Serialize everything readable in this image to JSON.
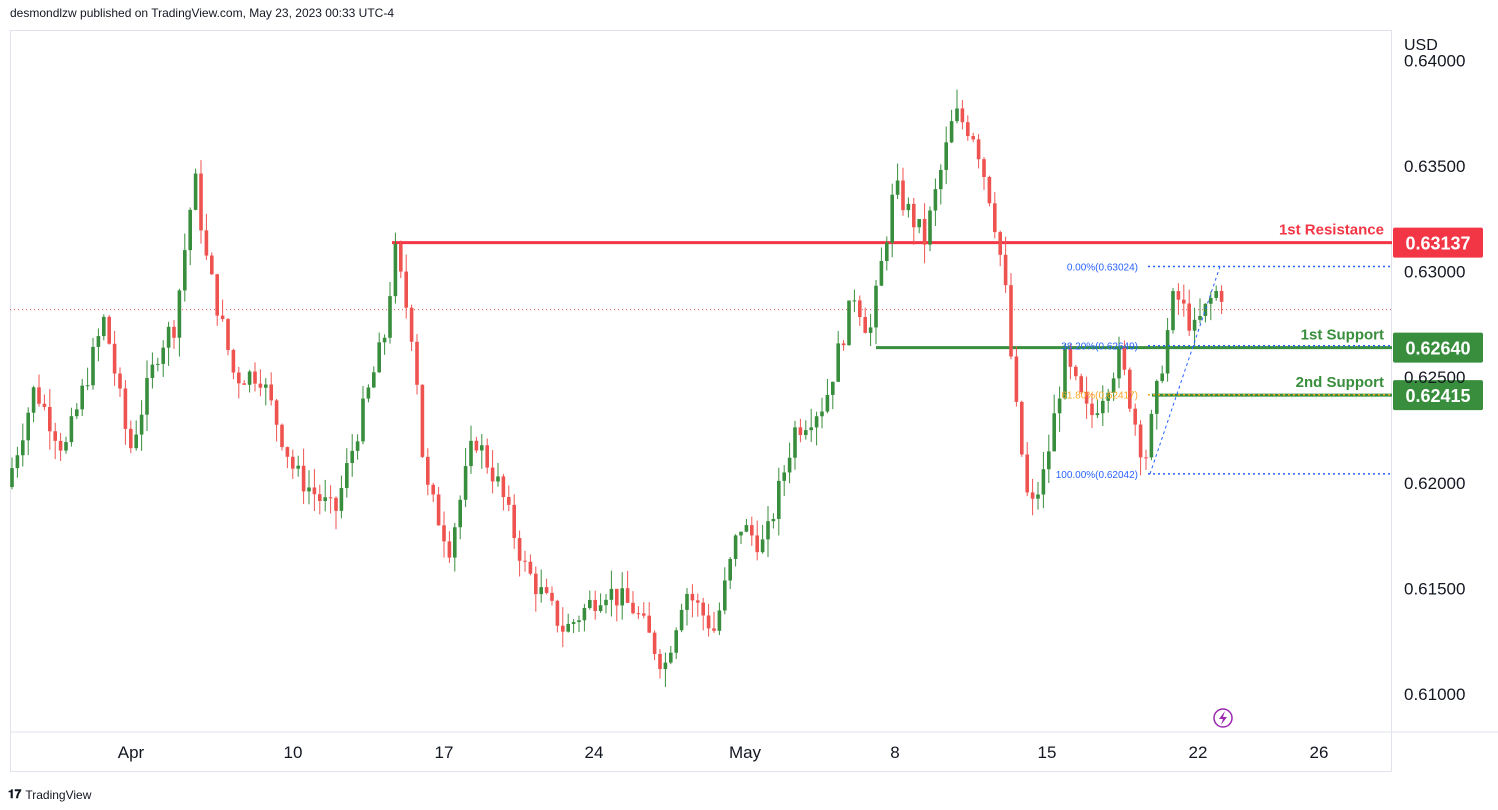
{
  "header": {
    "published": "desmondlzw published on TradingView.com, May 23, 2023 00:33 UTC-4"
  },
  "footer": {
    "logo_text": "TradingView"
  },
  "colors": {
    "up": "#26a69a",
    "up_body": "#388e3c",
    "down": "#ef5350",
    "resistance": "#f23645",
    "support": "#388e3c",
    "fib": "#2962ff",
    "fib_golden": "#f9a825"
  },
  "chart_data": {
    "type": "candlestick",
    "currency_label": "USD",
    "y_ticks": [
      "0.64000",
      "0.63500",
      "0.63000",
      "0.62500",
      "0.62000",
      "0.61500",
      "0.61000"
    ],
    "y_tick_values": [
      0.64,
      0.635,
      0.63,
      0.625,
      0.62,
      0.615,
      0.61
    ],
    "ylim": [
      0.607,
      0.6405
    ],
    "x_ticks": [
      "Apr",
      "10",
      "17",
      "24",
      "May",
      "8",
      "15",
      "22",
      "26"
    ],
    "levels": [
      {
        "name": "1st Resistance",
        "value": "0.63137",
        "v": 0.63137,
        "kind": "resistance"
      },
      {
        "name": "1st Support",
        "value": "0.62640",
        "v": 0.6264,
        "kind": "support"
      },
      {
        "name": "2nd Support",
        "value": "0.62415",
        "v": 0.62415,
        "kind": "support"
      }
    ],
    "fib_labels": [
      {
        "text": "0.00%(0.63024)",
        "v": 0.63024
      },
      {
        "text": "38.20%(0.62649)",
        "v": 0.62649
      },
      {
        "text": "61.80%(0.62417)",
        "v": 0.62417
      },
      {
        "text": "100.00%(0.62042)",
        "v": 0.62042
      }
    ],
    "last_price": 0.6282
  }
}
